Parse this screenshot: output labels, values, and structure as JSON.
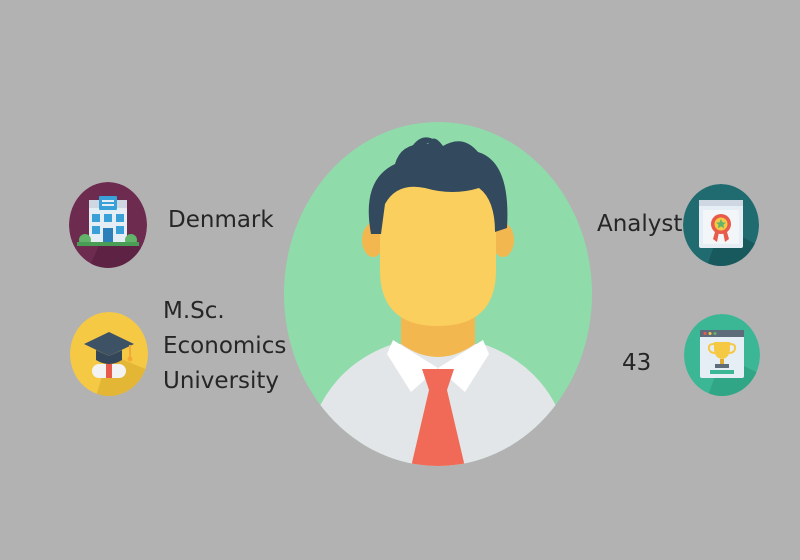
{
  "profile": {
    "location": "Denmark",
    "education": [
      "M.Sc.",
      "Economics",
      "University"
    ],
    "occupation": "Analyst",
    "age": "43"
  },
  "icons": {
    "location": "office-building-icon",
    "education": "graduation-cap-diploma-icon",
    "occupation": "certificate-award-icon",
    "age": "trophy-webpage-icon"
  },
  "colors": {
    "background": "#b2b2b2",
    "avatar_circle": "#8fdcaa",
    "skin": "#fbcf5d",
    "hair": "#334a5e",
    "tie": "#f06a57",
    "shirt": "#e3e6e9",
    "location_icon_bg": "#6e2b50",
    "education_icon_bg": "#f6c944",
    "occupation_icon_bg": "#1f6b70",
    "age_icon_bg": "#3bb796"
  }
}
